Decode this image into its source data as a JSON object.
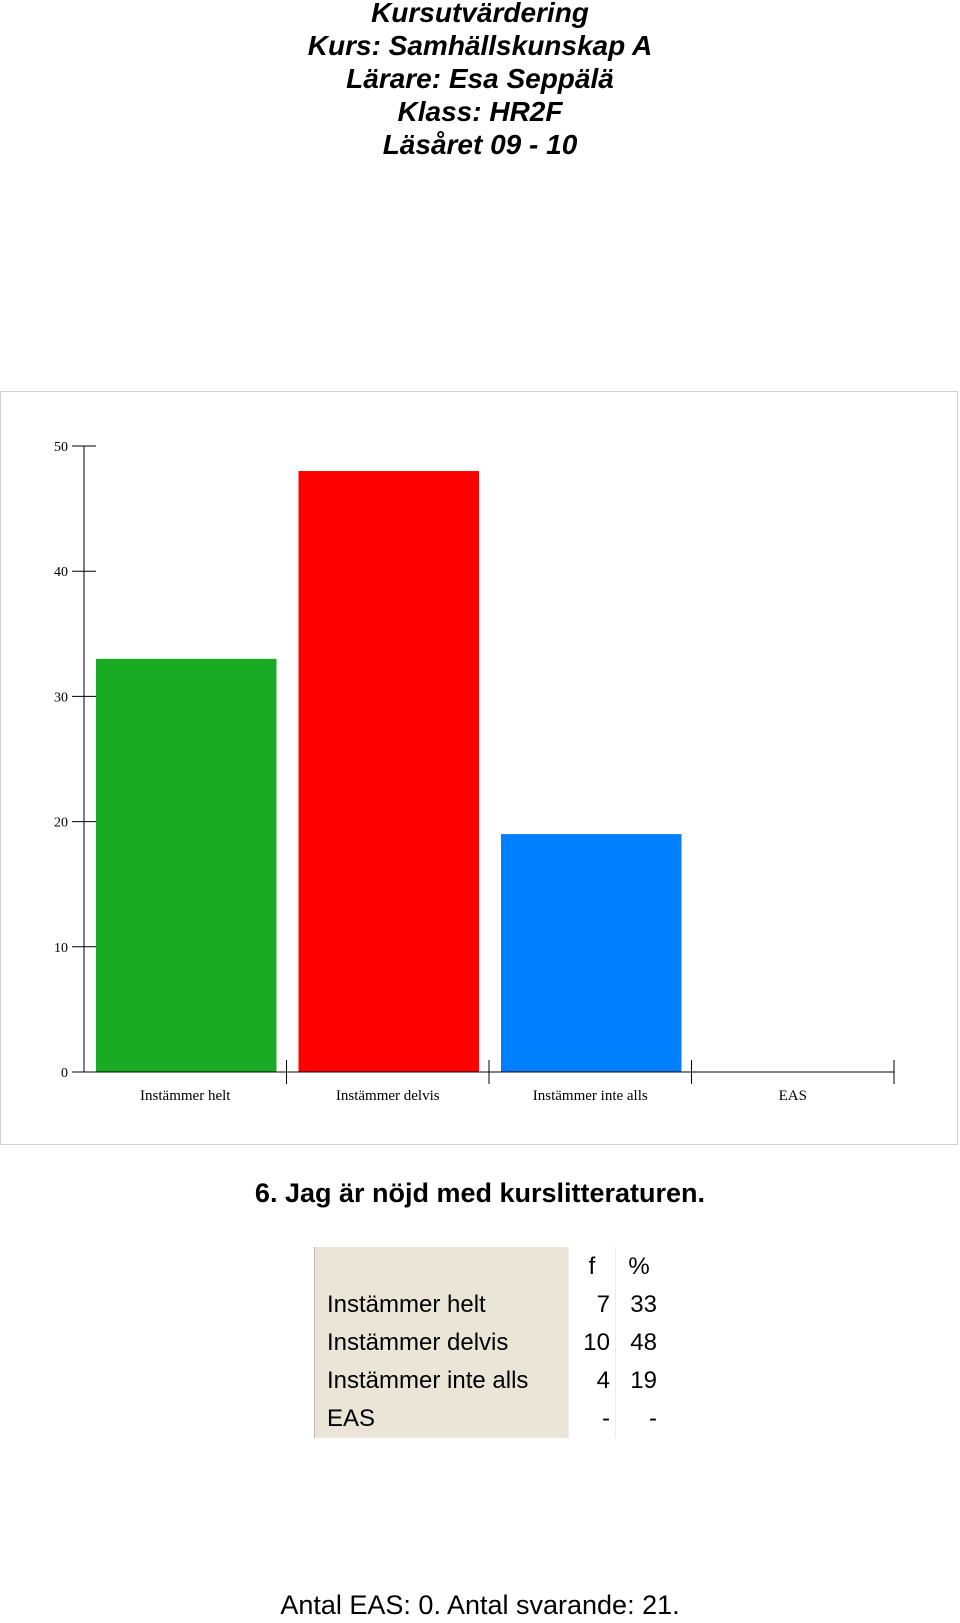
{
  "header": {
    "line1": "Kursutvärdering",
    "line2": "Kurs: Samhällskunskap A",
    "line3": "Lärare: Esa Seppälä",
    "line4": "Klass: HR2F",
    "line5": "Läsåret 09 - 10"
  },
  "chart_data": {
    "type": "bar",
    "categories": [
      "Instämmer helt",
      "Instämmer delvis",
      "Instämmer inte alls",
      "EAS"
    ],
    "values": [
      33,
      48,
      19,
      0
    ],
    "colors": [
      "#1aab24",
      "#ff0000",
      "#007fff",
      "#ffffff"
    ],
    "ylim": [
      0,
      50
    ],
    "yticks": [
      0,
      10,
      20,
      30,
      40,
      50
    ],
    "grid": false,
    "legend": "none"
  },
  "question": "6. Jag är nöjd med kurslitteraturen.",
  "table": {
    "col_f": "f",
    "col_pct": "%",
    "rows": [
      {
        "label": "Instämmer helt",
        "f": "7",
        "pct": "33"
      },
      {
        "label": "Instämmer delvis",
        "f": "10",
        "pct": "48"
      },
      {
        "label": "Instämmer inte alls",
        "f": "4",
        "pct": "19"
      },
      {
        "label": "EAS",
        "f": "-",
        "pct": "-"
      }
    ]
  },
  "footer": "Antal EAS: 0. Antal svarande:  21."
}
